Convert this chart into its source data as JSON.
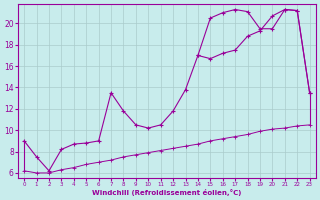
{
  "xlabel": "Windchill (Refroidissement éolien,°C)",
  "bg_color": "#c8ecec",
  "line_color": "#990099",
  "grid_color": "#aacccc",
  "curve_main_x": [
    0,
    1,
    2,
    3,
    4,
    5,
    6,
    7,
    8,
    9,
    10,
    11,
    12,
    13,
    14,
    15,
    16,
    17,
    18,
    19,
    20,
    21,
    22,
    23
  ],
  "curve_main_y": [
    9.0,
    7.5,
    6.2,
    8.2,
    8.7,
    8.8,
    9.0,
    13.5,
    11.8,
    10.5,
    10.2,
    10.5,
    11.8,
    13.8,
    17.0,
    16.7,
    17.2,
    17.5,
    18.8,
    19.3,
    20.7,
    21.3,
    21.2,
    13.5
  ],
  "curve_upper_x": [
    14,
    15,
    16,
    17,
    18,
    19,
    20,
    21,
    22,
    23
  ],
  "curve_upper_y": [
    17.0,
    20.5,
    21.0,
    21.3,
    21.1,
    19.5,
    19.5,
    21.3,
    21.2,
    13.5
  ],
  "curve_min_x": [
    0,
    1,
    2,
    3,
    4,
    5,
    6,
    7,
    8,
    9,
    10,
    11,
    12,
    13,
    14,
    15,
    16,
    17,
    18,
    19,
    20,
    21,
    22,
    23
  ],
  "curve_min_y": [
    6.2,
    6.0,
    6.0,
    6.3,
    6.5,
    6.8,
    7.0,
    7.2,
    7.5,
    7.7,
    7.9,
    8.1,
    8.3,
    8.5,
    8.7,
    9.0,
    9.2,
    9.4,
    9.6,
    9.9,
    10.1,
    10.2,
    10.4,
    10.5
  ],
  "xlim": [
    -0.5,
    23.5
  ],
  "ylim": [
    5.5,
    21.8
  ],
  "yticks": [
    6,
    8,
    10,
    12,
    14,
    16,
    18,
    20
  ],
  "xticks": [
    0,
    1,
    2,
    3,
    4,
    5,
    6,
    7,
    8,
    9,
    10,
    11,
    12,
    13,
    14,
    15,
    16,
    17,
    18,
    19,
    20,
    21,
    22,
    23
  ]
}
